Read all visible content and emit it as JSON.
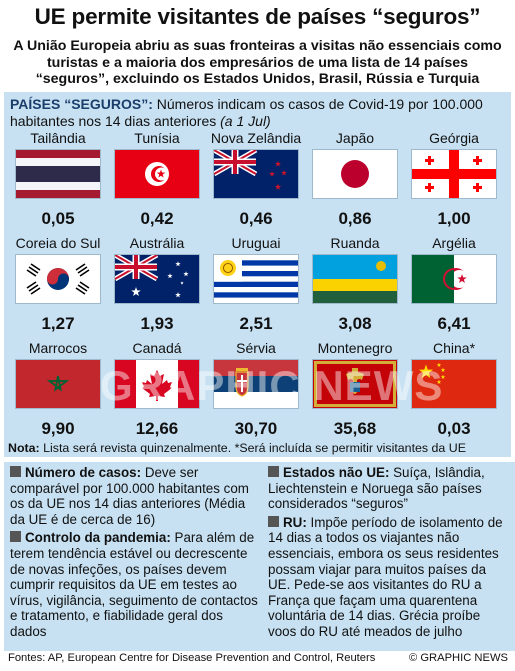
{
  "title": "UE permite visitantes de países “seguros”",
  "subtitle": "A União Europeia abriu as suas fronteiras a visitas não essenciais como turistas e a maioria dos empresários de uma lista de 14 países “seguros”, excluindo os Estados Unidos, Brasil, Rússia e Turquia",
  "panel": {
    "label": "PAÍSES “SEGUROS”:",
    "text": " Números indicam os casos de Covid-19 por 100.000 habitantes nos 14 dias anteriores ",
    "date": "(a 1 Jul)"
  },
  "countries": [
    {
      "name": "Tailândia",
      "value": "0,05",
      "flag": "thailand"
    },
    {
      "name": "Tunísia",
      "value": "0,42",
      "flag": "tunisia"
    },
    {
      "name": "Nova Zelândia",
      "value": "0,46",
      "flag": "new-zealand"
    },
    {
      "name": "Japão",
      "value": "0,86",
      "flag": "japan"
    },
    {
      "name": "Geórgia",
      "value": "1,00",
      "flag": "georgia"
    },
    {
      "name": "Coreia do Sul",
      "value": "1,27",
      "flag": "south-korea"
    },
    {
      "name": "Austrália",
      "value": "1,93",
      "flag": "australia"
    },
    {
      "name": "Uruguai",
      "value": "2,51",
      "flag": "uruguay"
    },
    {
      "name": "Ruanda",
      "value": "3,08",
      "flag": "rwanda"
    },
    {
      "name": "Argélia",
      "value": "6,41",
      "flag": "algeria"
    },
    {
      "name": "Marrocos",
      "value": "9,90",
      "flag": "morocco"
    },
    {
      "name": "Canadá",
      "value": "12,66",
      "flag": "canada"
    },
    {
      "name": "Sérvia",
      "value": "30,70",
      "flag": "serbia"
    },
    {
      "name": "Montenegro",
      "value": "35,68",
      "flag": "montenegro"
    },
    {
      "name": "China*",
      "value": "0,03",
      "flag": "china"
    }
  ],
  "note": {
    "label": "Nota:",
    "text": " Lista será revista quinzenalmente. *Será incluída se permitir visitantes da UE"
  },
  "left_box": {
    "p1_head": "Número de casos:",
    "p1_text": " Deve ser comparável por 100.000 habitantes com os da UE nos 14 dias anteriores (Média da UE é de cerca de 16)",
    "p2_head": "Controlo da pandemia:",
    "p2_text": " Para além de terem tendência estável ou decrescente de novas infeções, os países devem cumprir requisitos da UE em testes ao vírus, vigilância, seguimento de contactos e tratamento, e fiabilidade geral dos dados"
  },
  "right_box": {
    "p1_head": "Estados não UE:",
    "p1_text": " Suíça, Islândia, Liechtenstein e Noruega são países considerados “seguros”",
    "p2_head": "RU:",
    "p2_text": " Impõe período de isolamento de 14 dias a todos os viajantes não essenciais, embora os seus residentes possam viajar para muitos países da UE. Pede-se aos visitantes do RU a França que façam uma quarentena voluntária de 14 dias. Grécia proíbe voos do RU até meados de julho"
  },
  "footer": {
    "sources": "Fontes: AP, European Centre for Disease Prevention and Control, Reuters",
    "credit": "© GRAPHIC NEWS"
  },
  "watermark": "GRAPHIC NEWS",
  "colors": {
    "panel": "#c7e1f2",
    "label": "#1b3d6b"
  }
}
